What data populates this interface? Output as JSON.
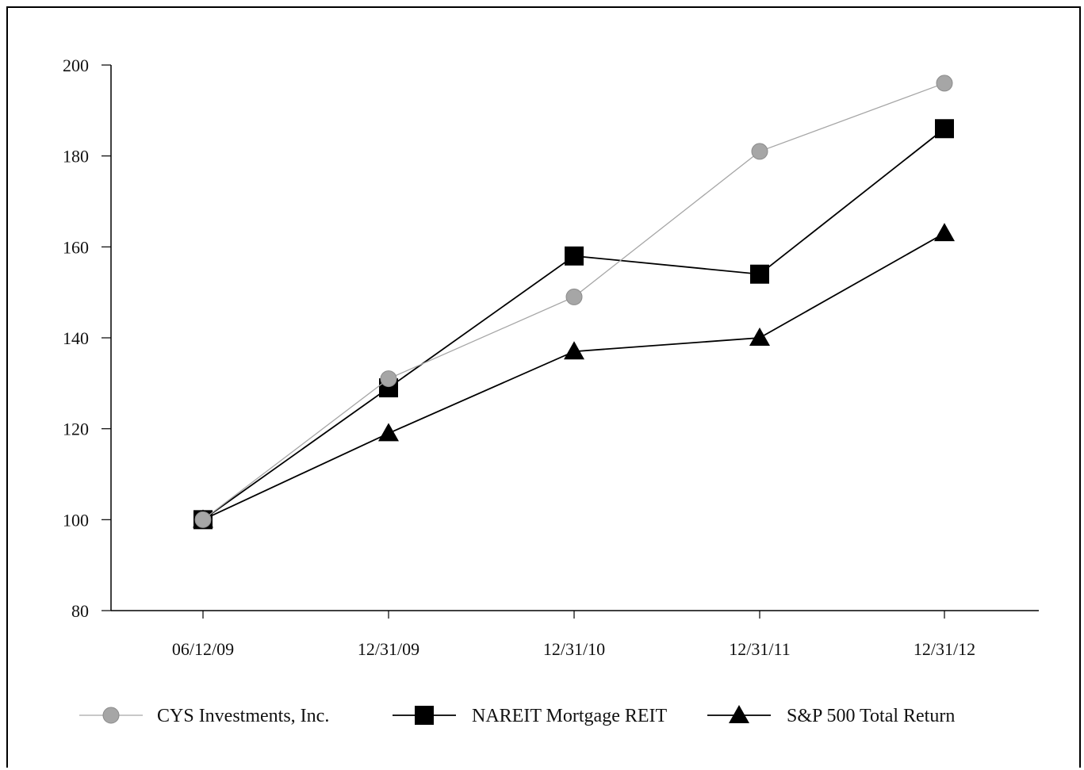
{
  "chart_data": {
    "type": "line",
    "title": "",
    "xlabel": "",
    "ylabel": "",
    "categories": [
      "06/12/09",
      "12/31/09",
      "12/31/10",
      "12/31/11",
      "12/31/12"
    ],
    "ylim": [
      80,
      200
    ],
    "yticks": [
      80,
      100,
      120,
      140,
      160,
      180,
      200
    ],
    "grid": false,
    "legend_position": "bottom",
    "series": [
      {
        "name": "CYS Investments, Inc.",
        "values": [
          100,
          131,
          149,
          181,
          196
        ],
        "color": "#a6a6a6",
        "marker": "circle"
      },
      {
        "name": "NAREIT Mortgage REIT",
        "values": [
          100,
          129,
          158,
          154,
          186
        ],
        "color": "#000000",
        "marker": "square"
      },
      {
        "name": "S&P 500 Total Return",
        "values": [
          100,
          119,
          137,
          140,
          163
        ],
        "color": "#000000",
        "marker": "triangle"
      }
    ]
  }
}
